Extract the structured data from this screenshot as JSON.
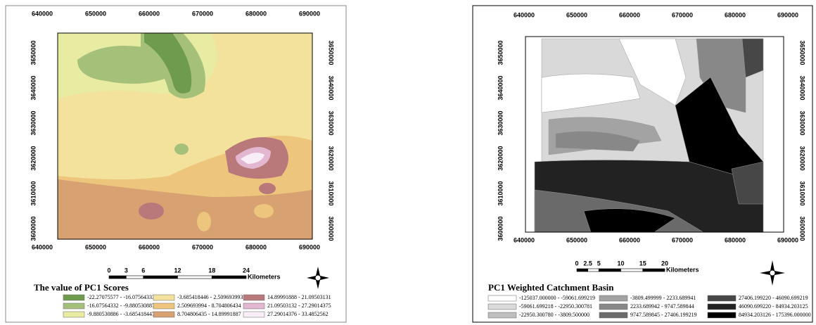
{
  "left_map": {
    "x_labels": [
      640000,
      650000,
      660000,
      670000,
      680000,
      690000
    ],
    "y_labels": [
      3600000,
      3610000,
      3620000,
      3630000,
      3640000,
      3650000
    ],
    "scale_labels": [
      0,
      3,
      6,
      12,
      18,
      24
    ],
    "scale_unit": "Kilometers",
    "legend_title": "The value of PC1 Scores",
    "legend_items": [
      {
        "label": "-22.27075577 - -16.07564333",
        "color": "#6f9b4f"
      },
      {
        "label": "-16.07564332 - -9.880530887",
        "color": "#a5c078"
      },
      {
        "label": "-9.880530886 - -3.685418447",
        "color": "#e8eba2"
      },
      {
        "label": "-3.685418446 - 2.509693993",
        "color": "#f3e29b"
      },
      {
        "label": "2.509693994 - 8.704806434",
        "color": "#eec57c"
      },
      {
        "label": "8.704806435 - 14.89991887",
        "color": "#d7a172"
      },
      {
        "label": "14.89991888 - 21.09503131",
        "color": "#b9797b"
      },
      {
        "label": "21.09503132 - 27.29014375",
        "color": "#e2b7cf"
      },
      {
        "label": "27.29014376 - 33.4852562",
        "color": "#f8eef8"
      }
    ]
  },
  "right_map": {
    "x_labels": [
      640000,
      650000,
      660000,
      670000,
      680000,
      690000
    ],
    "y_labels": [
      3600000,
      3610000,
      3620000,
      3630000,
      3640000,
      3650000
    ],
    "scale_labels": [
      0,
      2.5,
      5,
      10,
      15,
      20
    ],
    "scale_unit": "Kilometers",
    "legend_title": "PC1 Weighted Catchment Basin",
    "legend_items": [
      {
        "label": "-125037.000000 - -59061.699219",
        "color": "#ffffff"
      },
      {
        "label": "-59061.699218 - -22950.300781",
        "color": "#d9d9d9"
      },
      {
        "label": "-22950.300780 - -3809.500000",
        "color": "#bdbdbd"
      },
      {
        "label": "-3809.499999 - 2233.689941",
        "color": "#a3a3a3"
      },
      {
        "label": "2233.689942 - 9747.589844",
        "color": "#888888"
      },
      {
        "label": "9747.589845 - 27406.199219",
        "color": "#6a6a6a"
      },
      {
        "label": "27406.199220 - 46090.699219",
        "color": "#474747"
      },
      {
        "label": "46090.699220 - 84934.203125",
        "color": "#222222"
      },
      {
        "label": "84934.203126 - 175396.000000",
        "color": "#000000"
      }
    ]
  }
}
